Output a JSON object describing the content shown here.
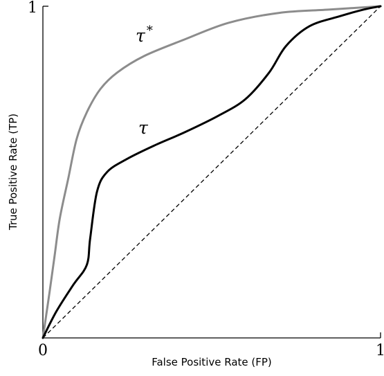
{
  "chart_data": {
    "type": "line",
    "title": "",
    "xlabel": "False Positive Rate (FP)",
    "ylabel": "True Positive Rate (TP)",
    "xlim": [
      0,
      1
    ],
    "ylim": [
      0,
      1
    ],
    "x_ticks": [
      "0",
      "1"
    ],
    "y_ticks": [
      "1"
    ],
    "grid": false,
    "series": [
      {
        "name": "τ*",
        "label_base": "τ",
        "label_sup": "*",
        "color": "#8c8c8c",
        "style": "solid",
        "points": [
          [
            0,
            0
          ],
          [
            0.01,
            0.07
          ],
          [
            0.02,
            0.14
          ],
          [
            0.035,
            0.25
          ],
          [
            0.05,
            0.36
          ],
          [
            0.075,
            0.48
          ],
          [
            0.1,
            0.6
          ],
          [
            0.13,
            0.68
          ],
          [
            0.17,
            0.75
          ],
          [
            0.22,
            0.8
          ],
          [
            0.3,
            0.85
          ],
          [
            0.42,
            0.9
          ],
          [
            0.55,
            0.95
          ],
          [
            0.7,
            0.98
          ],
          [
            0.85,
            0.99
          ],
          [
            1,
            1
          ]
        ]
      },
      {
        "name": "τ",
        "label_base": "τ",
        "label_sup": "",
        "color": "#000000",
        "style": "solid",
        "points": [
          [
            0,
            0
          ],
          [
            0.04,
            0.08
          ],
          [
            0.09,
            0.16
          ],
          [
            0.13,
            0.22
          ],
          [
            0.14,
            0.3
          ],
          [
            0.16,
            0.44
          ],
          [
            0.19,
            0.5
          ],
          [
            0.25,
            0.54
          ],
          [
            0.33,
            0.58
          ],
          [
            0.42,
            0.62
          ],
          [
            0.52,
            0.67
          ],
          [
            0.6,
            0.72
          ],
          [
            0.67,
            0.8
          ],
          [
            0.72,
            0.88
          ],
          [
            0.79,
            0.94
          ],
          [
            0.88,
            0.97
          ],
          [
            0.95,
            0.99
          ],
          [
            1,
            1
          ]
        ]
      },
      {
        "name": "",
        "label_base": "",
        "label_sup": "",
        "color": "#000000",
        "style": "dashed",
        "points": [
          [
            0,
            0
          ],
          [
            1,
            1
          ]
        ]
      }
    ]
  }
}
